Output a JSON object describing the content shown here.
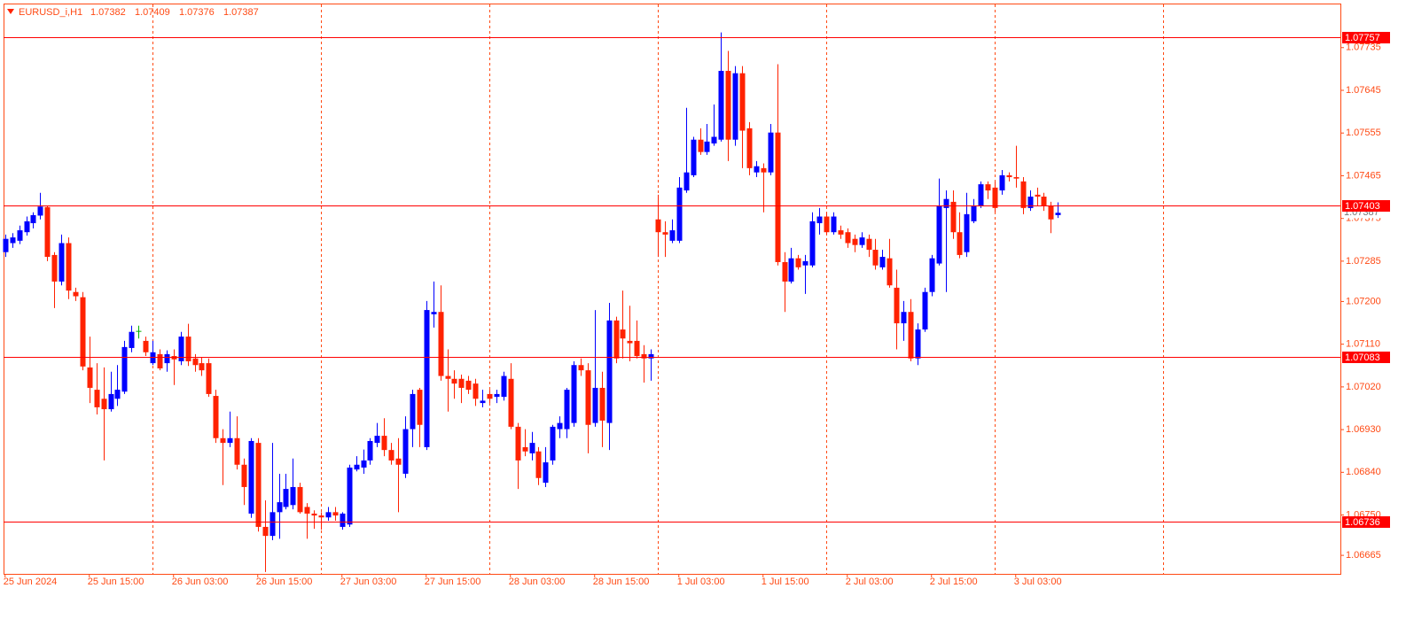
{
  "chart_data": {
    "type": "candlestick",
    "header": {
      "symbol": "EURUSD_i,H1",
      "open": 1.07382,
      "high": 1.07409,
      "low": 1.07376,
      "close": 1.07387
    },
    "up_color": "#0000ff",
    "down_color": "#ff2200",
    "doji_color": "#00b000",
    "axis_color": "#ff4a14",
    "level_color": "#ff0000",
    "ylim": [
      1.06626,
      1.07826
    ],
    "yticks": [
      {
        "value": 1.06665,
        "label": "1.06665"
      },
      {
        "value": 1.0675,
        "label": "1.06750"
      },
      {
        "value": 1.0684,
        "label": "1.06840"
      },
      {
        "value": 1.0693,
        "label": "1.06930"
      },
      {
        "value": 1.0702,
        "label": "1.07020"
      },
      {
        "value": 1.0711,
        "label": "1.07110"
      },
      {
        "value": 1.072,
        "label": "1.07200"
      },
      {
        "value": 1.07285,
        "label": "1.07285"
      },
      {
        "value": 1.07375,
        "label": "1.07375"
      },
      {
        "value": 1.07465,
        "label": "1.07465"
      },
      {
        "value": 1.07555,
        "label": "1.07555"
      },
      {
        "value": 1.07645,
        "label": "1.07645"
      },
      {
        "value": 1.07735,
        "label": "1.07735"
      }
    ],
    "xticks": [
      {
        "value": 0,
        "label": "25 Jun 2024"
      },
      {
        "value": 12,
        "label": "25 Jun 15:00"
      },
      {
        "value": 24,
        "label": "26 Jun 03:00"
      },
      {
        "value": 36,
        "label": "26 Jun 15:00"
      },
      {
        "value": 48,
        "label": "27 Jun 03:00"
      },
      {
        "value": 60,
        "label": "27 Jun 15:00"
      },
      {
        "value": 72,
        "label": "28 Jun 03:00"
      },
      {
        "value": 84,
        "label": "28 Jun 15:00"
      },
      {
        "value": 96,
        "label": "1 Jul 03:00"
      },
      {
        "value": 108,
        "label": "1 Jul 15:00"
      },
      {
        "value": 120,
        "label": "2 Jul 03:00"
      },
      {
        "value": 132,
        "label": "2 Jul 15:00"
      },
      {
        "value": 144,
        "label": "3 Jul 03:00"
      }
    ],
    "day_separators": [
      21,
      45,
      69,
      93,
      117,
      141,
      165
    ],
    "levels": [
      1.07757,
      1.07403,
      1.07083,
      1.06736
    ],
    "candles": [
      [
        1.07304,
        1.07341,
        1.07294,
        1.07332
      ],
      [
        1.07323,
        1.07344,
        1.07313,
        1.07335
      ],
      [
        1.07328,
        1.0736,
        1.07321,
        1.0735
      ],
      [
        1.07346,
        1.07379,
        1.07339,
        1.07369
      ],
      [
        1.07365,
        1.07388,
        1.07354,
        1.07382
      ],
      [
        1.07381,
        1.07429,
        1.07373,
        1.074
      ],
      [
        1.07399,
        1.07402,
        1.07285,
        1.07294
      ],
      [
        1.07298,
        1.07304,
        1.07186,
        1.07242
      ],
      [
        1.07242,
        1.07341,
        1.07234,
        1.07323
      ],
      [
        1.07323,
        1.07335,
        1.07205,
        1.07223
      ],
      [
        1.0722,
        1.07229,
        1.07201,
        1.07211
      ],
      [
        1.07209,
        1.0722,
        1.07055,
        1.07063
      ],
      [
        1.07061,
        1.07126,
        1.06986,
        1.07018
      ],
      [
        1.07014,
        1.0707,
        1.06962,
        1.06977
      ],
      [
        1.06995,
        1.07061,
        1.06865,
        1.06973
      ],
      [
        1.06973,
        1.07052,
        1.06968,
        1.07005
      ],
      [
        1.06995,
        1.07066,
        1.0698,
        1.07014
      ],
      [
        1.0701,
        1.07117,
        1.07005,
        1.07104
      ],
      [
        1.07102,
        1.07149,
        1.07093,
        1.07136
      ],
      [
        1.07138,
        1.07149,
        1.07122,
        1.07138
      ],
      [
        1.07117,
        1.07126,
        1.07085,
        1.07093
      ],
      [
        1.0707,
        1.07117,
        1.07066,
        1.07093
      ],
      [
        1.07089,
        1.07099,
        1.07055,
        1.07059
      ],
      [
        1.0707,
        1.07097,
        1.07052,
        1.07089
      ],
      [
        1.07085,
        1.07099,
        1.07024,
        1.07078
      ],
      [
        1.07074,
        1.07136,
        1.07066,
        1.07126
      ],
      [
        1.07126,
        1.07153,
        1.07064,
        1.07074
      ],
      [
        1.0708,
        1.07089,
        1.07052,
        1.07066
      ],
      [
        1.0707,
        1.07083,
        1.07043,
        1.07055
      ],
      [
        1.0707,
        1.0708,
        1.06999,
        1.07005
      ],
      [
        1.07001,
        1.07014,
        1.06902,
        1.06912
      ],
      [
        1.06912,
        1.06931,
        1.06813,
        1.06902
      ],
      [
        1.06902,
        1.06968,
        1.06893,
        1.06912
      ],
      [
        1.06912,
        1.06958,
        1.06846,
        1.06856
      ],
      [
        1.06856,
        1.06869,
        1.06771,
        1.06809
      ],
      [
        1.06753,
        1.06912,
        1.06744,
        1.06906
      ],
      [
        1.06902,
        1.06912,
        1.06715,
        1.06725
      ],
      [
        1.06725,
        1.06781,
        1.0663,
        1.06706
      ],
      [
        1.06706,
        1.06902,
        1.06697,
        1.06756
      ],
      [
        1.06756,
        1.06837,
        1.067,
        1.06777
      ],
      [
        1.06767,
        1.06837,
        1.06762,
        1.06805
      ],
      [
        1.06771,
        1.06869,
        1.06762,
        1.06809
      ],
      [
        1.06809,
        1.06818,
        1.06753,
        1.06756
      ],
      [
        1.06767,
        1.06775,
        1.067,
        1.06753
      ],
      [
        1.06753,
        1.0676,
        1.06721,
        1.06749
      ],
      [
        1.06749,
        1.06756,
        1.06719,
        1.06745
      ],
      [
        1.06745,
        1.06767,
        1.06738,
        1.06756
      ],
      [
        1.06756,
        1.06767,
        1.06738,
        1.06749
      ],
      [
        1.06725,
        1.06756,
        1.06719,
        1.06753
      ],
      [
        1.0673,
        1.06856,
        1.06725,
        1.0685
      ],
      [
        1.06846,
        1.06874,
        1.06842,
        1.06856
      ],
      [
        1.0685,
        1.06888,
        1.06837,
        1.06865
      ],
      [
        1.06865,
        1.06912,
        1.06856,
        1.06906
      ],
      [
        1.06902,
        1.06944,
        1.06893,
        1.06917
      ],
      [
        1.06917,
        1.06954,
        1.06874,
        1.06887
      ],
      [
        1.06887,
        1.06902,
        1.06856,
        1.06865
      ],
      [
        1.06869,
        1.06912,
        1.06756,
        1.06856
      ],
      [
        1.06837,
        1.06958,
        1.06828,
        1.06931
      ],
      [
        1.06931,
        1.07014,
        1.06893,
        1.07005
      ],
      [
        1.07014,
        1.07018,
        1.06893,
        1.0694
      ],
      [
        1.06893,
        1.07201,
        1.06887,
        1.07182
      ],
      [
        1.07173,
        1.07242,
        1.07145,
        1.07178
      ],
      [
        1.07178,
        1.07234,
        1.07033,
        1.07043
      ],
      [
        1.07043,
        1.07099,
        1.06968,
        1.07037
      ],
      [
        1.07037,
        1.07055,
        1.06995,
        1.07027
      ],
      [
        1.07037,
        1.07046,
        1.06986,
        1.07018
      ],
      [
        1.07033,
        1.07043,
        1.07005,
        1.07014
      ],
      [
        1.07027,
        1.07037,
        1.0698,
        1.06995
      ],
      [
        1.06986,
        1.07014,
        1.06977,
        1.06991
      ],
      [
        1.07005,
        1.07014,
        1.06986,
        1.06995
      ],
      [
        1.06999,
        1.07014,
        1.06986,
        1.07005
      ],
      [
        1.06999,
        1.07052,
        1.06991,
        1.07043
      ],
      [
        1.07037,
        1.0707,
        1.06931,
        1.06936
      ],
      [
        1.06936,
        1.06944,
        1.06805,
        1.06865
      ],
      [
        1.06893,
        1.06931,
        1.06874,
        1.06884
      ],
      [
        1.0688,
        1.06925,
        1.06865,
        1.06902
      ],
      [
        1.06884,
        1.06893,
        1.06813,
        1.06828
      ],
      [
        1.06818,
        1.06893,
        1.06809,
        1.06861
      ],
      [
        1.06865,
        1.0694,
        1.06856,
        1.06936
      ],
      [
        1.06931,
        1.06958,
        1.06912,
        1.06944
      ],
      [
        1.06931,
        1.07018,
        1.06912,
        1.07014
      ],
      [
        1.06944,
        1.07074,
        1.06936,
        1.07066
      ],
      [
        1.07066,
        1.0708,
        1.07043,
        1.07055
      ],
      [
        1.07055,
        1.0707,
        1.0688,
        1.0694
      ],
      [
        1.06944,
        1.07182,
        1.06936,
        1.07018
      ],
      [
        1.07018,
        1.07052,
        1.06893,
        1.06949
      ],
      [
        1.06944,
        1.07197,
        1.06887,
        1.0716
      ],
      [
        1.0716,
        1.07168,
        1.0707,
        1.0708
      ],
      [
        1.07141,
        1.07223,
        1.0708,
        1.07122
      ],
      [
        1.07117,
        1.07191,
        1.07074,
        1.07112
      ],
      [
        1.07117,
        1.0716,
        1.0708,
        1.07085
      ],
      [
        1.07089,
        1.07108,
        1.07029,
        1.0708
      ],
      [
        1.0708,
        1.07099,
        1.07033,
        1.07089
      ],
      [
        1.07373,
        1.07425,
        1.07294,
        1.07346
      ],
      [
        1.07346,
        1.07369,
        1.07294,
        1.07341
      ],
      [
        1.07328,
        1.07373,
        1.07323,
        1.0735
      ],
      [
        1.07328,
        1.07462,
        1.07323,
        1.0744
      ],
      [
        1.07434,
        1.07608,
        1.07429,
        1.07472
      ],
      [
        1.07466,
        1.07547,
        1.07462,
        1.07541
      ],
      [
        1.07541,
        1.07565,
        1.07509,
        1.07515
      ],
      [
        1.07515,
        1.07574,
        1.07509,
        1.07537
      ],
      [
        1.07533,
        1.07615,
        1.07528,
        1.07547
      ],
      [
        1.07541,
        1.07767,
        1.07537,
        1.07686
      ],
      [
        1.07686,
        1.07728,
        1.07496,
        1.07541
      ],
      [
        1.07541,
        1.07696,
        1.07528,
        1.07681
      ],
      [
        1.07681,
        1.07696,
        1.07481,
        1.0756
      ],
      [
        1.07565,
        1.07578,
        1.07466,
        1.07481
      ],
      [
        1.07472,
        1.07496,
        1.07462,
        1.07485
      ],
      [
        1.07481,
        1.07491,
        1.07388,
        1.07472
      ],
      [
        1.07472,
        1.07574,
        1.07466,
        1.07556
      ],
      [
        1.07556,
        1.077,
        1.07276,
        1.07283
      ],
      [
        1.07283,
        1.07304,
        1.07178,
        1.07242
      ],
      [
        1.07242,
        1.07313,
        1.07238,
        1.07291
      ],
      [
        1.07291,
        1.07298,
        1.07267,
        1.07272
      ],
      [
        1.07276,
        1.07298,
        1.07216,
        1.07285
      ],
      [
        1.07276,
        1.07388,
        1.07272,
        1.07369
      ],
      [
        1.07365,
        1.07397,
        1.07341,
        1.07379
      ],
      [
        1.07379,
        1.07388,
        1.07341,
        1.07346
      ],
      [
        1.07346,
        1.07388,
        1.07341,
        1.07379
      ],
      [
        1.0735,
        1.0736,
        1.07332,
        1.07341
      ],
      [
        1.07346,
        1.07354,
        1.07313,
        1.07323
      ],
      [
        1.07332,
        1.07341,
        1.07304,
        1.07319
      ],
      [
        1.07319,
        1.07346,
        1.07313,
        1.07335
      ],
      [
        1.07332,
        1.07341,
        1.07294,
        1.07309
      ],
      [
        1.07309,
        1.07332,
        1.07267,
        1.07276
      ],
      [
        1.07272,
        1.07309,
        1.07267,
        1.07294
      ],
      [
        1.07291,
        1.07332,
        1.07229,
        1.07234
      ],
      [
        1.07229,
        1.07267,
        1.07099,
        1.07154
      ],
      [
        1.07154,
        1.07201,
        1.07117,
        1.07178
      ],
      [
        1.07178,
        1.07205,
        1.07074,
        1.0708
      ],
      [
        1.0708,
        1.07154,
        1.07066,
        1.07141
      ],
      [
        1.07141,
        1.07229,
        1.07136,
        1.0722
      ],
      [
        1.0722,
        1.07298,
        1.07211,
        1.07291
      ],
      [
        1.0728,
        1.07459,
        1.07276,
        1.07402
      ],
      [
        1.07397,
        1.07434,
        1.0722,
        1.07416
      ],
      [
        1.0741,
        1.07434,
        1.07332,
        1.07346
      ],
      [
        1.07346,
        1.07388,
        1.07291,
        1.07298
      ],
      [
        1.07304,
        1.07429,
        1.07294,
        1.07384
      ],
      [
        1.07369,
        1.07416,
        1.07365,
        1.07402
      ],
      [
        1.07402,
        1.07453,
        1.07397,
        1.07447
      ],
      [
        1.07447,
        1.07453,
        1.07416,
        1.07434
      ],
      [
        1.0744,
        1.07453,
        1.07388,
        1.07397
      ],
      [
        1.07434,
        1.07477,
        1.07425,
        1.07466
      ],
      [
        1.07466,
        1.07472,
        1.07453,
        1.07462
      ],
      [
        1.07462,
        1.07528,
        1.0744,
        1.07459
      ],
      [
        1.07453,
        1.07462,
        1.07384,
        1.07397
      ],
      [
        1.07397,
        1.07434,
        1.07391,
        1.07421
      ],
      [
        1.07425,
        1.0744,
        1.07402,
        1.07421
      ],
      [
        1.07421,
        1.07429,
        1.07391,
        1.07402
      ],
      [
        1.07402,
        1.0741,
        1.07344,
        1.07373
      ],
      [
        1.07382,
        1.07409,
        1.07376,
        1.07387
      ]
    ]
  }
}
